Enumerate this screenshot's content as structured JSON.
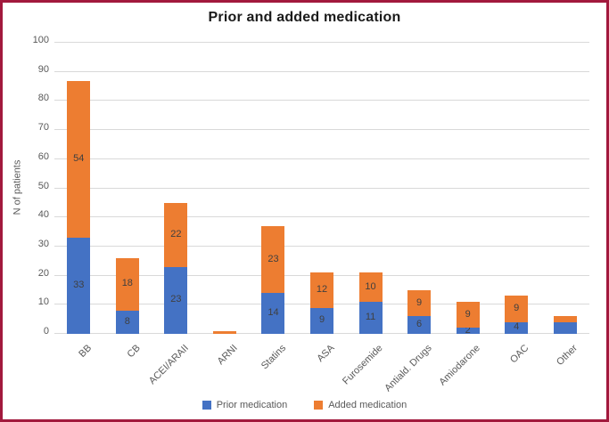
{
  "frame": {
    "border_color": "#A2193D",
    "background": "#FFFFFF"
  },
  "chart_data": {
    "type": "bar",
    "subtype": "stacked",
    "title": "Prior and added medication",
    "xlabel": "",
    "ylabel": "N of patients",
    "ylim": [
      0,
      100
    ],
    "yticks": [
      0,
      10,
      20,
      30,
      40,
      50,
      60,
      70,
      80,
      90,
      100
    ],
    "grid": true,
    "gridline_color": "#D9D9D9",
    "axis_text_color": "#595959",
    "data_label_color": "#3F3F3F",
    "title_color": "#1A1A1A",
    "legend_position": "bottom",
    "categories": [
      "BB",
      "CB",
      "ACEI/ARAII",
      "ARNI",
      "Statins",
      "ASA",
      "Furosemide",
      "Antiald. Drugs",
      "Amiodarone",
      "OAC",
      "Other"
    ],
    "series": [
      {
        "name": "Prior medication",
        "color": "#4472C4",
        "values": [
          33,
          8,
          23,
          0,
          14,
          9,
          11,
          6,
          2,
          4,
          4
        ],
        "data_labels": [
          "33",
          "8",
          "23",
          "",
          "14",
          "9",
          "11",
          "6",
          "2",
          "4",
          ""
        ]
      },
      {
        "name": "Added medication",
        "color": "#ED7D31",
        "values": [
          54,
          18,
          22,
          1,
          23,
          12,
          10,
          9,
          9,
          9,
          2
        ],
        "data_labels": [
          "54",
          "18",
          "22",
          "",
          "23",
          "12",
          "10",
          "9",
          "9",
          "9",
          ""
        ]
      }
    ]
  }
}
